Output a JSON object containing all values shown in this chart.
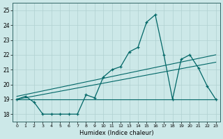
{
  "xlabel": "Humidex (Indice chaleur)",
  "background_color": "#cce8e8",
  "grid_color": "#b0d0d0",
  "line_color": "#006666",
  "xlim": [
    -0.5,
    23.5
  ],
  "ylim": [
    17.5,
    25.5
  ],
  "xticks": [
    0,
    1,
    2,
    3,
    4,
    5,
    6,
    7,
    8,
    9,
    10,
    11,
    12,
    13,
    14,
    15,
    16,
    17,
    18,
    19,
    20,
    21,
    22,
    23
  ],
  "yticks": [
    18,
    19,
    20,
    21,
    22,
    23,
    24,
    25
  ],
  "curve1_x": [
    0,
    1,
    2,
    3,
    4,
    5,
    6,
    7,
    8,
    9,
    10,
    11,
    12,
    13,
    14,
    15,
    16,
    17,
    18,
    19,
    20,
    21,
    22,
    23
  ],
  "curve1_y": [
    19.0,
    19.2,
    18.8,
    18.0,
    18.0,
    18.0,
    18.0,
    18.0,
    19.3,
    19.1,
    20.5,
    21.0,
    21.2,
    22.2,
    22.5,
    24.2,
    24.7,
    22.0,
    19.0,
    21.7,
    22.0,
    21.1,
    19.9,
    19.0
  ],
  "curve2_x": [
    0,
    23
  ],
  "curve2_y": [
    19.0,
    19.0
  ],
  "curve3_x": [
    0,
    23
  ],
  "curve3_y": [
    19.0,
    21.5
  ],
  "curve4_x": [
    0,
    23
  ],
  "curve4_y": [
    19.2,
    22.0
  ]
}
